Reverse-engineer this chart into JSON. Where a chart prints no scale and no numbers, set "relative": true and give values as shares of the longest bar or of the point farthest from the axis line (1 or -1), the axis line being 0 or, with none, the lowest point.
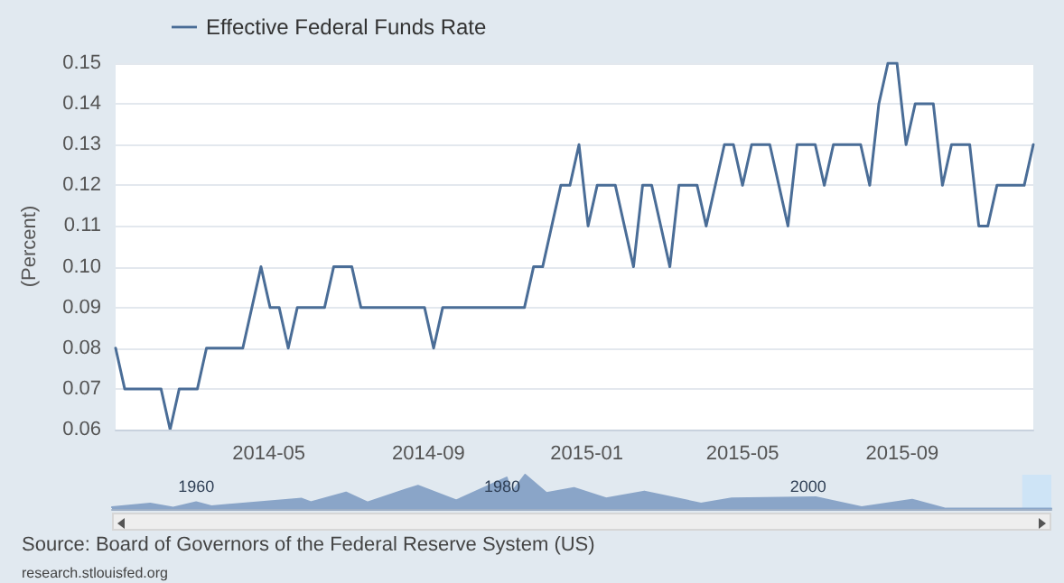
{
  "chart_data": [
    {
      "type": "line",
      "ylabel": "(Percent)",
      "legend": "top left",
      "grid": "y",
      "marker": "none",
      "line_style": "solid",
      "xlim": [
        "2014-01-03",
        "2015-12-11"
      ],
      "xticks": [
        "2014-05",
        "2014-09",
        "2015-01",
        "2015-05",
        "2015-09"
      ],
      "ylim": [
        0.06,
        0.15
      ],
      "yticks": [
        {
          "value": 0.06,
          "label": "0.06"
        },
        {
          "value": 0.07,
          "label": "0.07"
        },
        {
          "value": 0.08,
          "label": "0.08"
        },
        {
          "value": 0.09,
          "label": "0.09"
        },
        {
          "value": 0.1,
          "label": "0.10"
        },
        {
          "value": 0.11,
          "label": "0.11"
        },
        {
          "value": 0.12,
          "label": "0.12"
        },
        {
          "value": 0.13,
          "label": "0.13"
        },
        {
          "value": 0.14,
          "label": "0.14"
        },
        {
          "value": 0.15,
          "label": "0.15"
        }
      ],
      "series": [
        {
          "name": "Effective Federal Funds Rate",
          "color": "#4a6d97",
          "x": [
            "2014-01-03",
            "2014-01-10",
            "2014-02-07",
            "2014-02-14",
            "2014-02-21",
            "2014-03-07",
            "2014-03-14",
            "2014-04-11",
            "2014-04-25",
            "2014-05-02",
            "2014-05-09",
            "2014-05-16",
            "2014-05-23",
            "2014-06-13",
            "2014-06-20",
            "2014-07-04",
            "2014-07-11",
            "2014-08-29",
            "2014-09-05",
            "2014-09-12",
            "2014-11-14",
            "2014-11-21",
            "2014-11-28",
            "2014-12-05",
            "2014-12-12",
            "2014-12-19",
            "2014-12-26",
            "2015-01-02",
            "2015-01-09",
            "2015-01-23",
            "2015-02-06",
            "2015-02-13",
            "2015-02-20",
            "2015-03-06",
            "2015-03-13",
            "2015-03-27",
            "2015-04-03",
            "2015-04-17",
            "2015-04-24",
            "2015-05-01",
            "2015-05-08",
            "2015-05-22",
            "2015-06-05",
            "2015-06-12",
            "2015-06-26",
            "2015-07-03",
            "2015-07-10",
            "2015-07-31",
            "2015-08-07",
            "2015-08-14",
            "2015-08-21",
            "2015-08-28",
            "2015-09-04",
            "2015-09-11",
            "2015-09-25",
            "2015-10-02",
            "2015-10-09",
            "2015-10-23",
            "2015-10-30",
            "2015-11-06",
            "2015-11-13",
            "2015-12-04",
            "2015-12-11"
          ],
          "values": [
            0.08,
            0.07,
            0.07,
            0.06,
            0.07,
            0.07,
            0.08,
            0.08,
            0.1,
            0.09,
            0.09,
            0.08,
            0.09,
            0.09,
            0.1,
            0.1,
            0.09,
            0.09,
            0.08,
            0.09,
            0.09,
            0.1,
            0.1,
            0.11,
            0.12,
            0.12,
            0.13,
            0.11,
            0.12,
            0.12,
            0.1,
            0.12,
            0.12,
            0.1,
            0.12,
            0.12,
            0.11,
            0.13,
            0.13,
            0.12,
            0.13,
            0.13,
            0.11,
            0.13,
            0.13,
            0.12,
            0.13,
            0.13,
            0.12,
            0.14,
            0.15,
            0.15,
            0.13,
            0.14,
            0.14,
            0.12,
            0.13,
            0.13,
            0.11,
            0.11,
            0.12,
            0.12,
            0.13
          ]
        }
      ],
      "annotations": [
        "Source: Board of Governors of the Federal Reserve System (US)",
        "research.stlouisfed.org"
      ]
    },
    {
      "type": "area",
      "relative": true,
      "color": "#8aa5c8",
      "xlim": [
        1954.5,
        2015.9
      ],
      "xticks": [
        1960,
        1980,
        2000
      ],
      "x": [
        1954.5,
        1957,
        1958.5,
        1960,
        1961,
        1966.9,
        1967.5,
        1969.8,
        1971.2,
        1973.7,
        1974.5,
        1977,
        1980.3,
        1980.6,
        1981.5,
        1982.9,
        1984.7,
        1986.8,
        1989.3,
        1993,
        1995,
        2000.5,
        2003.5,
        2006.8,
        2009,
        2015.9
      ],
      "values": [
        0.05,
        0.16,
        0.04,
        0.2,
        0.08,
        0.3,
        0.2,
        0.48,
        0.19,
        0.57,
        0.68,
        0.25,
        0.92,
        0.47,
        1,
        0.47,
        0.61,
        0.31,
        0.51,
        0.16,
        0.31,
        0.34,
        0.05,
        0.27,
        0.01,
        0.01
      ],
      "bands": [
        {
          "axis": "x",
          "from": 2014.0,
          "to": 2015.9,
          "color": "#c9e2f7"
        }
      ]
    }
  ]
}
